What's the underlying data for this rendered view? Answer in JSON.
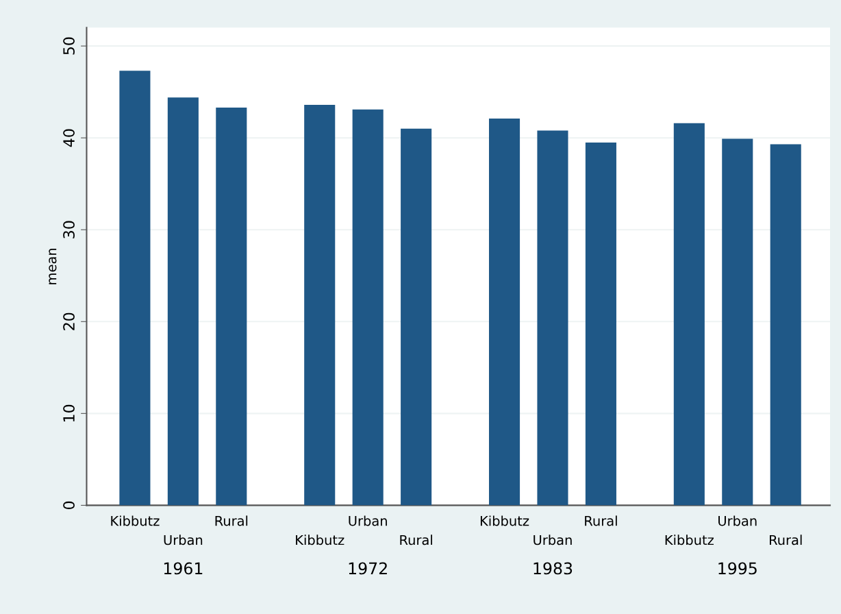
{
  "chart_data": {
    "type": "bar",
    "ylabel": "mean",
    "categories": [
      "1961",
      "1972",
      "1983",
      "1995"
    ],
    "series": [
      {
        "name": "Kibbutz",
        "color": "#1f5887",
        "values": [
          47.3,
          43.6,
          42.1,
          41.6
        ]
      },
      {
        "name": "Urban",
        "color": "#1f5887",
        "values": [
          44.4,
          43.1,
          40.8,
          39.9
        ]
      },
      {
        "name": "Rural",
        "color": "#1f5887",
        "values": [
          43.3,
          41.0,
          39.5,
          39.3
        ]
      }
    ],
    "ylim": [
      0,
      52
    ],
    "yticks": [
      0,
      10,
      20,
      30,
      40,
      50
    ],
    "grid": "y"
  }
}
